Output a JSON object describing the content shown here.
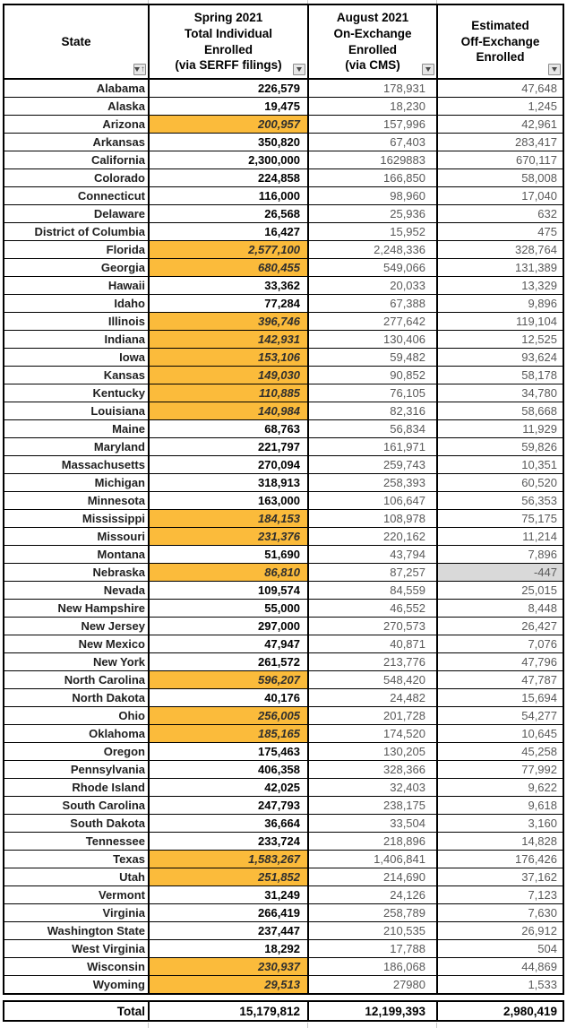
{
  "header": {
    "columns": [
      {
        "label": "State",
        "filter": "filter-sort-ascending"
      },
      {
        "label": "Spring 2021\nTotal Individual\nEnrolled\n(via SERFF filings)",
        "filter": "filter-dropdown"
      },
      {
        "label": "August 2021\nOn-Exchange\nEnrolled\n(via CMS)",
        "filter": "filter-dropdown"
      },
      {
        "label": "Estimated\nOff-Exchange\nEnrolled",
        "filter": "filter-dropdown"
      }
    ]
  },
  "rows": [
    {
      "state": "Alabama",
      "spring": "226,579",
      "august": "178,931",
      "off_exchange": "47,648",
      "spring_highlighted": false
    },
    {
      "state": "Alaska",
      "spring": "19,475",
      "august": "18,230",
      "off_exchange": "1,245",
      "spring_highlighted": false
    },
    {
      "state": "Arizona",
      "spring": "200,957",
      "august": "157,996",
      "off_exchange": "42,961",
      "spring_highlighted": true
    },
    {
      "state": "Arkansas",
      "spring": "350,820",
      "august": "67,403",
      "off_exchange": "283,417",
      "spring_highlighted": false
    },
    {
      "state": "California",
      "spring": "2,300,000",
      "august": "1629883",
      "off_exchange": "670,117",
      "spring_highlighted": false
    },
    {
      "state": "Colorado",
      "spring": "224,858",
      "august": "166,850",
      "off_exchange": "58,008",
      "spring_highlighted": false
    },
    {
      "state": "Connecticut",
      "spring": "116,000",
      "august": "98,960",
      "off_exchange": "17,040",
      "spring_highlighted": false
    },
    {
      "state": "Delaware",
      "spring": "26,568",
      "august": "25,936",
      "off_exchange": "632",
      "spring_highlighted": false
    },
    {
      "state": "District of Columbia",
      "spring": "16,427",
      "august": "15,952",
      "off_exchange": "475",
      "spring_highlighted": false
    },
    {
      "state": "Florida",
      "spring": "2,577,100",
      "august": "2,248,336",
      "off_exchange": "328,764",
      "spring_highlighted": true
    },
    {
      "state": "Georgia",
      "spring": "680,455",
      "august": "549,066",
      "off_exchange": "131,389",
      "spring_highlighted": true
    },
    {
      "state": "Hawaii",
      "spring": "33,362",
      "august": "20,033",
      "off_exchange": "13,329",
      "spring_highlighted": false
    },
    {
      "state": "Idaho",
      "spring": "77,284",
      "august": "67,388",
      "off_exchange": "9,896",
      "spring_highlighted": false
    },
    {
      "state": "Illinois",
      "spring": "396,746",
      "august": "277,642",
      "off_exchange": "119,104",
      "spring_highlighted": true
    },
    {
      "state": "Indiana",
      "spring": "142,931",
      "august": "130,406",
      "off_exchange": "12,525",
      "spring_highlighted": true
    },
    {
      "state": "Iowa",
      "spring": "153,106",
      "august": "59,482",
      "off_exchange": "93,624",
      "spring_highlighted": true
    },
    {
      "state": "Kansas",
      "spring": "149,030",
      "august": "90,852",
      "off_exchange": "58,178",
      "spring_highlighted": true
    },
    {
      "state": "Kentucky",
      "spring": "110,885",
      "august": "76,105",
      "off_exchange": "34,780",
      "spring_highlighted": true
    },
    {
      "state": "Louisiana",
      "spring": "140,984",
      "august": "82,316",
      "off_exchange": "58,668",
      "spring_highlighted": true
    },
    {
      "state": "Maine",
      "spring": "68,763",
      "august": "56,834",
      "off_exchange": "11,929",
      "spring_highlighted": false
    },
    {
      "state": "Maryland",
      "spring": "221,797",
      "august": "161,971",
      "off_exchange": "59,826",
      "spring_highlighted": false
    },
    {
      "state": "Massachusetts",
      "spring": "270,094",
      "august": "259,743",
      "off_exchange": "10,351",
      "spring_highlighted": false
    },
    {
      "state": "Michigan",
      "spring": "318,913",
      "august": "258,393",
      "off_exchange": "60,520",
      "spring_highlighted": false
    },
    {
      "state": "Minnesota",
      "spring": "163,000",
      "august": "106,647",
      "off_exchange": "56,353",
      "spring_highlighted": false
    },
    {
      "state": "Mississippi",
      "spring": "184,153",
      "august": "108,978",
      "off_exchange": "75,175",
      "spring_highlighted": true
    },
    {
      "state": "Missouri",
      "spring": "231,376",
      "august": "220,162",
      "off_exchange": "11,214",
      "spring_highlighted": true
    },
    {
      "state": "Montana",
      "spring": "51,690",
      "august": "43,794",
      "off_exchange": "7,896",
      "spring_highlighted": false
    },
    {
      "state": "Nebraska",
      "spring": "86,810",
      "august": "87,257",
      "off_exchange": "-447",
      "spring_highlighted": true,
      "off_gray": true
    },
    {
      "state": "Nevada",
      "spring": "109,574",
      "august": "84,559",
      "off_exchange": "25,015",
      "spring_highlighted": false
    },
    {
      "state": "New Hampshire",
      "spring": "55,000",
      "august": "46,552",
      "off_exchange": "8,448",
      "spring_highlighted": false
    },
    {
      "state": "New Jersey",
      "spring": "297,000",
      "august": "270,573",
      "off_exchange": "26,427",
      "spring_highlighted": false
    },
    {
      "state": "New Mexico",
      "spring": "47,947",
      "august": "40,871",
      "off_exchange": "7,076",
      "spring_highlighted": false
    },
    {
      "state": "New York",
      "spring": "261,572",
      "august": "213,776",
      "off_exchange": "47,796",
      "spring_highlighted": false
    },
    {
      "state": "North Carolina",
      "spring": "596,207",
      "august": "548,420",
      "off_exchange": "47,787",
      "spring_highlighted": true
    },
    {
      "state": "North Dakota",
      "spring": "40,176",
      "august": "24,482",
      "off_exchange": "15,694",
      "spring_highlighted": false
    },
    {
      "state": "Ohio",
      "spring": "256,005",
      "august": "201,728",
      "off_exchange": "54,277",
      "spring_highlighted": true
    },
    {
      "state": "Oklahoma",
      "spring": "185,165",
      "august": "174,520",
      "off_exchange": "10,645",
      "spring_highlighted": true
    },
    {
      "state": "Oregon",
      "spring": "175,463",
      "august": "130,205",
      "off_exchange": "45,258",
      "spring_highlighted": false
    },
    {
      "state": "Pennsylvania",
      "spring": "406,358",
      "august": "328,366",
      "off_exchange": "77,992",
      "spring_highlighted": false
    },
    {
      "state": "Rhode Island",
      "spring": "42,025",
      "august": "32,403",
      "off_exchange": "9,622",
      "spring_highlighted": false
    },
    {
      "state": "South Carolina",
      "spring": "247,793",
      "august": "238,175",
      "off_exchange": "9,618",
      "spring_highlighted": false
    },
    {
      "state": "South Dakota",
      "spring": "36,664",
      "august": "33,504",
      "off_exchange": "3,160",
      "spring_highlighted": false
    },
    {
      "state": "Tennessee",
      "spring": "233,724",
      "august": "218,896",
      "off_exchange": "14,828",
      "spring_highlighted": false
    },
    {
      "state": "Texas",
      "spring": "1,583,267",
      "august": "1,406,841",
      "off_exchange": "176,426",
      "spring_highlighted": true
    },
    {
      "state": "Utah",
      "spring": "251,852",
      "august": "214,690",
      "off_exchange": "37,162",
      "spring_highlighted": true
    },
    {
      "state": "Vermont",
      "spring": "31,249",
      "august": "24,126",
      "off_exchange": "7,123",
      "spring_highlighted": false
    },
    {
      "state": "Virginia",
      "spring": "266,419",
      "august": "258,789",
      "off_exchange": "7,630",
      "spring_highlighted": false
    },
    {
      "state": "Washington State",
      "spring": "237,447",
      "august": "210,535",
      "off_exchange": "26,912",
      "spring_highlighted": false
    },
    {
      "state": "West Virginia",
      "spring": "18,292",
      "august": "17,788",
      "off_exchange": "504",
      "spring_highlighted": false
    },
    {
      "state": "Wisconsin",
      "spring": "230,937",
      "august": "186,068",
      "off_exchange": "44,869",
      "spring_highlighted": true
    },
    {
      "state": "Wyoming",
      "spring": "29,513",
      "august": "27980",
      "off_exchange": "1,533",
      "spring_highlighted": true
    }
  ],
  "total_row": {
    "label": "Total",
    "spring": "15,179,812",
    "august": "12,199,393",
    "off_exchange": "2,980,419"
  },
  "colors": {
    "highlight_orange": "#fbbb3b",
    "gray_cell": "#d9d9d9",
    "border": "#000000"
  }
}
